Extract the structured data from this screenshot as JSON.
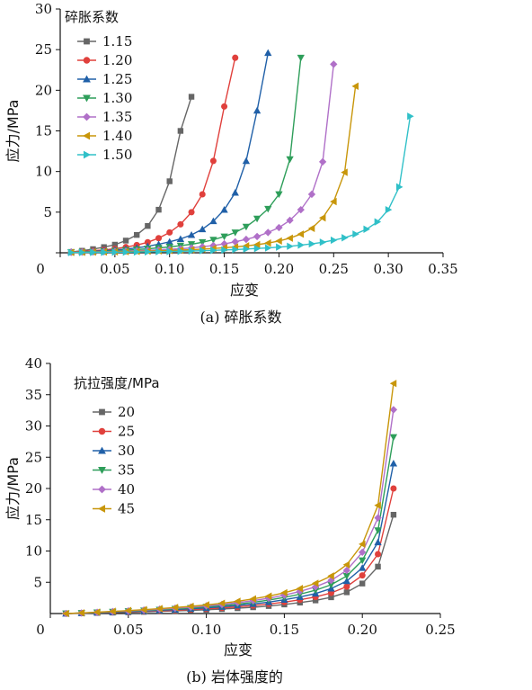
{
  "chart_data": [
    {
      "type": "line",
      "caption": "(a)  碎胀系数",
      "xlabel": "应变",
      "ylabel": "应力/MPa",
      "xlim": [
        0,
        0.35
      ],
      "ylim": [
        0,
        30
      ],
      "x_ticks": [
        "0",
        "0.05",
        "0.10",
        "0.15",
        "0.20",
        "0.25",
        "0.30",
        "0.35"
      ],
      "y_ticks": [
        "0",
        "5",
        "10",
        "15",
        "20",
        "25",
        "30"
      ],
      "legend_title": "碎胀系数",
      "series": [
        {
          "name": "1.15",
          "color": "#666666",
          "marker": "square",
          "x": [
            0.01,
            0.02,
            0.03,
            0.04,
            0.05,
            0.06,
            0.07,
            0.08,
            0.09,
            0.1,
            0.11,
            0.12
          ],
          "y": [
            0.1,
            0.25,
            0.45,
            0.7,
            1.0,
            1.5,
            2.2,
            3.3,
            5.3,
            8.8,
            15.0,
            19.2
          ]
        },
        {
          "name": "1.20",
          "color": "#e0403c",
          "marker": "circle",
          "x": [
            0.01,
            0.02,
            0.03,
            0.04,
            0.05,
            0.06,
            0.07,
            0.08,
            0.09,
            0.1,
            0.11,
            0.12,
            0.13,
            0.14,
            0.15,
            0.16
          ],
          "y": [
            0.1,
            0.15,
            0.25,
            0.35,
            0.5,
            0.7,
            0.95,
            1.3,
            1.8,
            2.5,
            3.5,
            5.0,
            7.2,
            11.3,
            18.0,
            24.0
          ]
        },
        {
          "name": "1.25",
          "color": "#2060a8",
          "marker": "triangle-up",
          "x": [
            0.01,
            0.02,
            0.03,
            0.04,
            0.05,
            0.06,
            0.07,
            0.08,
            0.09,
            0.1,
            0.11,
            0.12,
            0.13,
            0.14,
            0.15,
            0.16,
            0.17,
            0.18,
            0.19
          ],
          "y": [
            0.1,
            0.12,
            0.18,
            0.25,
            0.35,
            0.45,
            0.6,
            0.8,
            1.05,
            1.35,
            1.7,
            2.2,
            2.9,
            3.9,
            5.3,
            7.4,
            11.3,
            17.5,
            24.6
          ]
        },
        {
          "name": "1.30",
          "color": "#2e9e5a",
          "marker": "triangle-down",
          "x": [
            0.01,
            0.02,
            0.03,
            0.04,
            0.05,
            0.06,
            0.07,
            0.08,
            0.09,
            0.1,
            0.11,
            0.12,
            0.13,
            0.14,
            0.15,
            0.16,
            0.17,
            0.18,
            0.19,
            0.2,
            0.21,
            0.22
          ],
          "y": [
            0.08,
            0.1,
            0.13,
            0.18,
            0.25,
            0.32,
            0.4,
            0.5,
            0.6,
            0.72,
            0.88,
            1.05,
            1.3,
            1.6,
            2.0,
            2.5,
            3.2,
            4.2,
            5.4,
            7.2,
            11.5,
            24.0
          ]
        },
        {
          "name": "1.35",
          "color": "#b070c8",
          "marker": "diamond",
          "x": [
            0.01,
            0.02,
            0.03,
            0.04,
            0.05,
            0.06,
            0.07,
            0.08,
            0.09,
            0.1,
            0.11,
            0.12,
            0.13,
            0.14,
            0.15,
            0.16,
            0.17,
            0.18,
            0.19,
            0.2,
            0.21,
            0.22,
            0.23,
            0.24,
            0.25
          ],
          "y": [
            0.05,
            0.08,
            0.1,
            0.13,
            0.16,
            0.2,
            0.25,
            0.3,
            0.36,
            0.43,
            0.5,
            0.6,
            0.75,
            0.9,
            1.1,
            1.35,
            1.65,
            2.0,
            2.5,
            3.1,
            4.0,
            5.3,
            7.2,
            11.2,
            23.2
          ]
        },
        {
          "name": "1.40",
          "color": "#c8960a",
          "marker": "triangle-left",
          "x": [
            0.01,
            0.02,
            0.03,
            0.04,
            0.05,
            0.06,
            0.07,
            0.08,
            0.09,
            0.1,
            0.11,
            0.12,
            0.13,
            0.14,
            0.15,
            0.16,
            0.17,
            0.18,
            0.19,
            0.2,
            0.21,
            0.22,
            0.23,
            0.24,
            0.25,
            0.26,
            0.27
          ],
          "y": [
            0.05,
            0.06,
            0.08,
            0.1,
            0.12,
            0.14,
            0.17,
            0.2,
            0.24,
            0.28,
            0.33,
            0.38,
            0.45,
            0.53,
            0.62,
            0.72,
            0.85,
            1.0,
            1.2,
            1.45,
            1.8,
            2.3,
            3.0,
            4.3,
            6.3,
            9.9,
            20.5
          ]
        },
        {
          "name": "1.50",
          "color": "#30c0c8",
          "marker": "triangle-right",
          "x": [
            0.01,
            0.02,
            0.03,
            0.04,
            0.05,
            0.06,
            0.07,
            0.08,
            0.09,
            0.1,
            0.11,
            0.12,
            0.13,
            0.14,
            0.15,
            0.16,
            0.17,
            0.18,
            0.19,
            0.2,
            0.21,
            0.22,
            0.23,
            0.24,
            0.25,
            0.26,
            0.27,
            0.28,
            0.29,
            0.3,
            0.31,
            0.32
          ],
          "y": [
            0.03,
            0.04,
            0.05,
            0.06,
            0.07,
            0.08,
            0.1,
            0.12,
            0.14,
            0.16,
            0.19,
            0.22,
            0.26,
            0.3,
            0.35,
            0.4,
            0.46,
            0.53,
            0.6,
            0.7,
            0.8,
            0.95,
            1.1,
            1.3,
            1.55,
            1.85,
            2.3,
            2.9,
            3.8,
            5.3,
            8.1,
            16.8
          ]
        }
      ]
    },
    {
      "type": "line",
      "caption": "(b)  岩体强度的",
      "xlabel": "应变",
      "ylabel": "应力/MPa",
      "xlim": [
        0,
        0.25
      ],
      "ylim": [
        0,
        40
      ],
      "x_ticks": [
        "0",
        "0.05",
        "0.10",
        "0.15",
        "0.20",
        "0.25"
      ],
      "y_ticks": [
        "5",
        "10",
        "15",
        "20",
        "25",
        "30",
        "35",
        "40"
      ],
      "legend_title": "抗拉强度/MPa",
      "series": [
        {
          "name": "20",
          "color": "#666666",
          "marker": "square",
          "x": [
            0.01,
            0.02,
            0.03,
            0.04,
            0.05,
            0.06,
            0.07,
            0.08,
            0.09,
            0.1,
            0.11,
            0.12,
            0.13,
            0.14,
            0.15,
            0.16,
            0.17,
            0.18,
            0.19,
            0.2,
            0.21,
            0.22
          ],
          "y": [
            0.0,
            0.05,
            0.1,
            0.15,
            0.2,
            0.27,
            0.35,
            0.42,
            0.5,
            0.6,
            0.72,
            0.85,
            1.0,
            1.2,
            1.45,
            1.75,
            2.1,
            2.6,
            3.4,
            4.8,
            7.5,
            15.8
          ]
        },
        {
          "name": "25",
          "color": "#e0403c",
          "marker": "circle",
          "x": [
            0.01,
            0.02,
            0.03,
            0.04,
            0.05,
            0.06,
            0.07,
            0.08,
            0.09,
            0.1,
            0.11,
            0.12,
            0.13,
            0.14,
            0.15,
            0.16,
            0.17,
            0.18,
            0.19,
            0.2,
            0.21,
            0.22
          ],
          "y": [
            0.0,
            0.06,
            0.12,
            0.19,
            0.26,
            0.34,
            0.43,
            0.52,
            0.63,
            0.75,
            0.9,
            1.07,
            1.28,
            1.52,
            1.83,
            2.2,
            2.65,
            3.3,
            4.3,
            6.1,
            9.5,
            20.0
          ]
        },
        {
          "name": "30",
          "color": "#2060a8",
          "marker": "triangle-up",
          "x": [
            0.01,
            0.02,
            0.03,
            0.04,
            0.05,
            0.06,
            0.07,
            0.08,
            0.09,
            0.1,
            0.11,
            0.12,
            0.13,
            0.14,
            0.15,
            0.16,
            0.17,
            0.18,
            0.19,
            0.2,
            0.21,
            0.22
          ],
          "y": [
            0.0,
            0.07,
            0.15,
            0.23,
            0.31,
            0.41,
            0.52,
            0.63,
            0.76,
            0.9,
            1.08,
            1.29,
            1.54,
            1.83,
            2.2,
            2.65,
            3.2,
            4.0,
            5.2,
            7.3,
            11.4,
            24.0
          ]
        },
        {
          "name": "35",
          "color": "#2e9e5a",
          "marker": "triangle-down",
          "x": [
            0.01,
            0.02,
            0.03,
            0.04,
            0.05,
            0.06,
            0.07,
            0.08,
            0.09,
            0.1,
            0.11,
            0.12,
            0.13,
            0.14,
            0.15,
            0.16,
            0.17,
            0.18,
            0.19,
            0.2,
            0.21,
            0.22
          ],
          "y": [
            0.0,
            0.08,
            0.17,
            0.27,
            0.37,
            0.48,
            0.6,
            0.74,
            0.89,
            1.06,
            1.26,
            1.5,
            1.79,
            2.14,
            2.57,
            3.09,
            3.73,
            4.6,
            6.0,
            8.5,
            13.3,
            28.2
          ]
        },
        {
          "name": "40",
          "color": "#b070c8",
          "marker": "diamond",
          "x": [
            0.01,
            0.02,
            0.03,
            0.04,
            0.05,
            0.06,
            0.07,
            0.08,
            0.09,
            0.1,
            0.11,
            0.12,
            0.13,
            0.14,
            0.15,
            0.16,
            0.17,
            0.18,
            0.19,
            0.2,
            0.21,
            0.22
          ],
          "y": [
            0.0,
            0.09,
            0.2,
            0.31,
            0.42,
            0.55,
            0.69,
            0.85,
            1.02,
            1.22,
            1.45,
            1.73,
            2.06,
            2.45,
            2.94,
            3.54,
            4.27,
            5.3,
            6.9,
            9.8,
            15.3,
            32.6
          ]
        },
        {
          "name": "45",
          "color": "#c8960a",
          "marker": "triangle-left",
          "x": [
            0.01,
            0.02,
            0.03,
            0.04,
            0.05,
            0.06,
            0.07,
            0.08,
            0.09,
            0.1,
            0.11,
            0.12,
            0.13,
            0.14,
            0.15,
            0.16,
            0.17,
            0.18,
            0.19,
            0.2,
            0.21,
            0.22
          ],
          "y": [
            0.0,
            0.1,
            0.22,
            0.35,
            0.48,
            0.62,
            0.78,
            0.96,
            1.15,
            1.38,
            1.64,
            1.96,
            2.34,
            2.78,
            3.33,
            4.0,
            4.84,
            6.0,
            7.8,
            11.1,
            17.3,
            36.8
          ]
        }
      ]
    }
  ]
}
